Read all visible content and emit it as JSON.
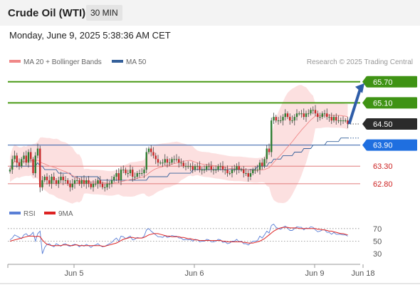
{
  "header": {
    "title": "Crude Oil (WTI)",
    "timeframe": "30 MIN",
    "datetime": "Monday, June 9, 2025 5:38:36 AM CET"
  },
  "chart_data": {
    "type": "candlestick",
    "instrument": "Crude Oil (WTI)",
    "interval": "30 MIN",
    "ylim": [
      62.25,
      66.0
    ],
    "legend": [
      {
        "name": "MA 20 + Bollinger Bands",
        "color": "#f08888"
      },
      {
        "name": "MA 50",
        "color": "#35609a"
      }
    ],
    "watermark": "Research © 2025 Trading Central",
    "levels": [
      {
        "value": "65.70",
        "type": "resistance",
        "color": "#4a9a16",
        "label_bg": "#3f9314",
        "label_color": "#ffffff"
      },
      {
        "value": "65.10",
        "type": "resistance",
        "color": "#4a9a16",
        "label_bg": "#3f9314",
        "label_color": "#ffffff"
      },
      {
        "value": "64.50",
        "type": "last",
        "color": "#333333",
        "label_bg": "#2b2b2b",
        "label_color": "#ffffff"
      },
      {
        "value": "63.90",
        "type": "pivot",
        "color": "#2f5da8",
        "label_bg": "#1f6fe0",
        "label_color": "#ffffff"
      },
      {
        "value": "63.30",
        "type": "support",
        "color": "#e07a7a",
        "label_bg": "none",
        "label_color": "#cc2222"
      },
      {
        "value": "62.80",
        "type": "support",
        "color": "#e07a7a",
        "label_bg": "none",
        "label_color": "#cc2222"
      }
    ],
    "x_ticks": [
      "Jun 5",
      "Jun 6",
      "Jun 9",
      "Jun 18"
    ],
    "close_series": [
      63.2,
      63.5,
      63.6,
      63.4,
      63.3,
      63.5,
      63.6,
      63.4,
      63.7,
      63.5,
      63.1,
      63.6,
      63.8,
      62.7,
      62.9,
      63.0,
      62.9,
      62.8,
      63.0,
      62.9,
      62.8,
      62.9,
      63.0,
      62.9,
      62.9,
      62.8,
      62.7,
      62.8,
      62.9,
      62.9,
      62.8,
      62.9,
      62.8,
      62.9,
      62.8,
      62.7,
      62.8,
      62.8,
      62.9,
      62.8,
      62.7,
      62.7,
      62.8,
      62.8,
      62.9,
      63.0,
      63.1,
      62.9,
      63.2,
      63.2,
      63.1,
      63.1,
      63.2,
      63.0,
      63.0,
      63.1,
      63.1,
      63.1,
      63.2,
      63.7,
      63.8,
      63.7,
      63.6,
      63.5,
      63.4,
      63.4,
      63.4,
      63.5,
      63.4,
      63.4,
      63.5,
      63.5,
      63.5,
      63.4,
      63.4,
      63.3,
      63.3,
      63.3,
      63.3,
      63.2,
      63.3,
      63.3,
      63.2,
      63.2,
      63.2,
      63.3,
      63.3,
      63.2,
      63.2,
      63.2,
      63.3,
      63.3,
      63.2,
      63.2,
      63.1,
      63.1,
      63.2,
      63.2,
      63.3,
      63.2,
      63.2,
      63.1,
      63.1,
      63.0,
      63.1,
      63.2,
      63.2,
      63.2,
      63.4,
      63.3,
      63.5,
      63.8,
      63.7,
      64.6,
      64.7,
      64.6,
      64.6,
      64.6,
      64.7,
      64.8,
      64.7,
      64.6,
      64.6,
      64.7,
      64.8,
      64.8,
      64.8,
      64.7,
      64.8,
      64.8,
      64.9,
      64.9,
      64.8,
      64.7,
      64.7,
      64.8,
      64.8,
      64.7,
      64.7,
      64.6,
      64.7,
      64.6,
      64.6,
      64.6,
      64.6,
      64.6,
      64.5
    ],
    "ma50_series": [
      63.3,
      63.3,
      63.3,
      63.3,
      63.3,
      63.3,
      63.3,
      63.3,
      63.3,
      63.3,
      63.3,
      63.3,
      63.4,
      63.3,
      63.3,
      63.2,
      63.2,
      63.2,
      63.2,
      63.2,
      63.2,
      63.1,
      63.1,
      63.1,
      63.1,
      63.1,
      63.1,
      63.0,
      63.0,
      63.0,
      63.0,
      63.0,
      63.0,
      63.0,
      63.0,
      63.0,
      63.0,
      63.0,
      63.0,
      62.9,
      62.9,
      62.9,
      62.9,
      62.9,
      62.9,
      62.9,
      62.9,
      62.9,
      62.9,
      62.9,
      62.9,
      62.9,
      62.9,
      62.9,
      62.9,
      62.9,
      62.9,
      62.9,
      62.9,
      62.9,
      63.0,
      63.0,
      63.0,
      63.0,
      63.0,
      63.0,
      63.0,
      63.0,
      63.0,
      63.1,
      63.1,
      63.1,
      63.1,
      63.1,
      63.1,
      63.1,
      63.1,
      63.1,
      63.1,
      63.2,
      63.2,
      63.2,
      63.2,
      63.2,
      63.2,
      63.2,
      63.2,
      63.2,
      63.2,
      63.2,
      63.2,
      63.2,
      63.2,
      63.2,
      63.2,
      63.2,
      63.2,
      63.2,
      63.2,
      63.2,
      63.2,
      63.2,
      63.2,
      63.2,
      63.2,
      63.2,
      63.2,
      63.3,
      63.3,
      63.3,
      63.3,
      63.3,
      63.4,
      63.4,
      63.5,
      63.5,
      63.5,
      63.5,
      63.6,
      63.6,
      63.6,
      63.6,
      63.6,
      63.7,
      63.7,
      63.7,
      63.7,
      63.8,
      63.8,
      63.8,
      63.8,
      63.9,
      63.9,
      63.9,
      63.9,
      63.9,
      63.9,
      64.0,
      64.0,
      64.0,
      64.0,
      64.0,
      64.0,
      64.1,
      64.1,
      64.1,
      64.1
    ],
    "forecast": {
      "from": "64.50",
      "to": "65.70"
    },
    "rsi": {
      "legend": [
        {
          "name": "RSI",
          "color": "#5a7fd6"
        },
        {
          "name": "9MA",
          "color": "#dd2222"
        }
      ],
      "ylim": [
        20,
        80
      ],
      "y_ticks": [
        "70",
        "50",
        "30"
      ],
      "rsi_series": [
        52,
        55,
        60,
        58,
        56,
        54,
        60,
        62,
        58,
        60,
        64,
        50,
        62,
        66,
        30,
        40,
        45,
        46,
        43,
        41,
        46,
        44,
        42,
        45,
        46,
        43,
        42,
        44,
        45,
        44,
        41,
        44,
        42,
        45,
        43,
        40,
        43,
        44,
        46,
        43,
        41,
        42,
        44,
        46,
        48,
        52,
        55,
        50,
        58,
        57,
        54,
        56,
        58,
        52,
        53,
        56,
        55,
        55,
        58,
        68,
        70,
        66,
        63,
        60,
        57,
        57,
        56,
        59,
        56,
        57,
        59,
        58,
        58,
        55,
        55,
        52,
        53,
        52,
        53,
        50,
        53,
        52,
        49,
        50,
        50,
        53,
        52,
        49,
        49,
        50,
        53,
        52,
        48,
        49,
        46,
        47,
        50,
        50,
        53,
        49,
        50,
        46,
        46,
        44,
        47,
        50,
        50,
        51,
        58,
        55,
        60,
        66,
        63,
        75,
        77,
        72,
        70,
        69,
        72,
        74,
        71,
        67,
        67,
        70,
        73,
        72,
        72,
        68,
        71,
        70,
        73,
        72,
        68,
        65,
        66,
        68,
        68,
        64,
        64,
        61,
        64,
        61,
        61,
        61,
        60,
        60,
        58
      ],
      "ma9_series": [
        50,
        51,
        52,
        53,
        54,
        55,
        56,
        57,
        58,
        58,
        58,
        57,
        58,
        57,
        52,
        48,
        45,
        44,
        43,
        43,
        43,
        43,
        43,
        44,
        44,
        44,
        43,
        43,
        44,
        44,
        43,
        43,
        43,
        43,
        43,
        43,
        43,
        43,
        43,
        43,
        42,
        42,
        43,
        44,
        45,
        46,
        47,
        49,
        51,
        53,
        54,
        55,
        56,
        56,
        55,
        55,
        55,
        55,
        56,
        58,
        60,
        61,
        62,
        62,
        62,
        61,
        60,
        59,
        58,
        58,
        57,
        57,
        57,
        57,
        56,
        56,
        55,
        54,
        54,
        53,
        52,
        52,
        51,
        51,
        51,
        51,
        51,
        51,
        51,
        51,
        51,
        51,
        50,
        50,
        49,
        49,
        49,
        49,
        49,
        49,
        49,
        48,
        48,
        47,
        47,
        47,
        48,
        49,
        50,
        52,
        54,
        57,
        60,
        63,
        66,
        68,
        70,
        71,
        72,
        72,
        72,
        71,
        71,
        71,
        71,
        70,
        70,
        70,
        70,
        70,
        70,
        70,
        70,
        69,
        69,
        68,
        68,
        67,
        66,
        66,
        65,
        64,
        63,
        62,
        62,
        61,
        60
      ]
    }
  }
}
